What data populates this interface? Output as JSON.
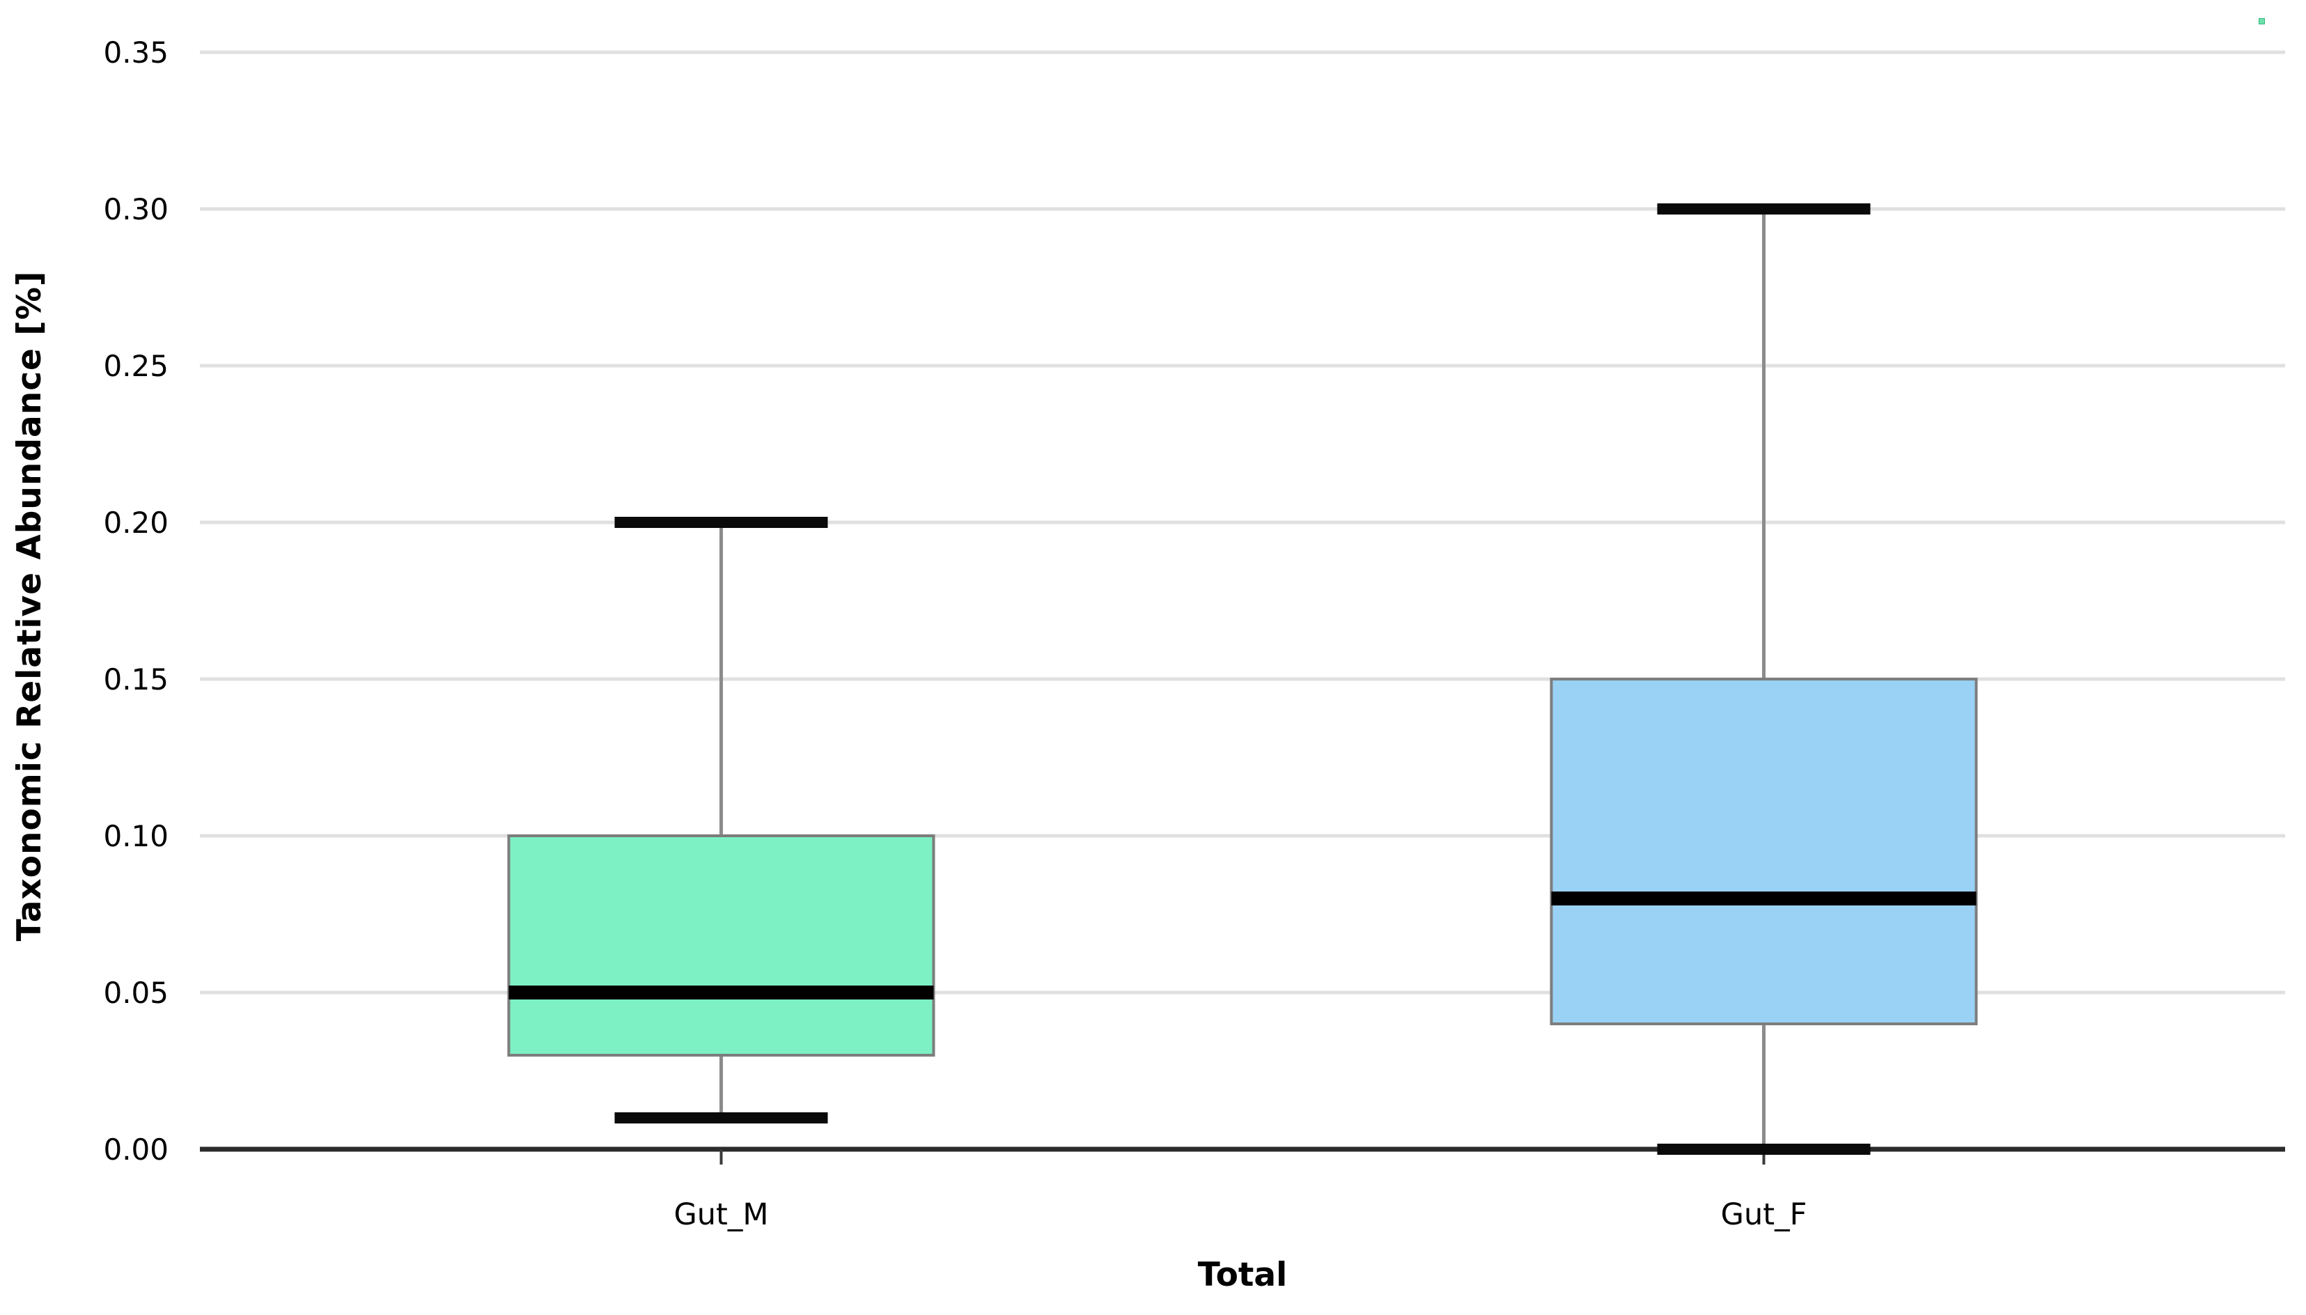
{
  "figure": {
    "background_color": "#ffffff",
    "corner_marker_color": "#6ee2ab"
  },
  "chart_data": {
    "type": "boxplot",
    "title": "",
    "xlabel": "Total",
    "ylabel": "Taxonomic Relative Abundance [%]",
    "ylim": [
      0.0,
      0.35
    ],
    "ytick_step": 0.05,
    "yticks": [
      0.0,
      0.05,
      0.1,
      0.15,
      0.2,
      0.25,
      0.3,
      0.35
    ],
    "ytick_labels": [
      "0.00",
      "0.05",
      "0.10",
      "0.15",
      "0.20",
      "0.25",
      "0.30",
      "0.35"
    ],
    "grid": "horizontal",
    "legend_position": "none",
    "categories": [
      "Gut_M",
      "Gut_F"
    ],
    "series": [
      {
        "name": "Gut_M",
        "whisker_low": 0.01,
        "q1": 0.03,
        "median": 0.05,
        "q3": 0.1,
        "whisker_high": 0.2,
        "fill_color": "#7df0c4"
      },
      {
        "name": "Gut_F",
        "whisker_low": 0.0,
        "q1": 0.04,
        "median": 0.08,
        "q3": 0.15,
        "whisker_high": 0.3,
        "fill_color": "#9ad2f5"
      }
    ],
    "styles": {
      "grid_color": "#e0e0e0",
      "axis_line_color": "#2b2b2b",
      "tick_mark_color": "#3a3a3a",
      "box_border_color": "#7d7d7d",
      "median_color": "#000000",
      "whisker_line_color": "#8c8c8c",
      "whisker_cap_color": "#0a0a0a",
      "tick_label_color": "#000000"
    }
  }
}
